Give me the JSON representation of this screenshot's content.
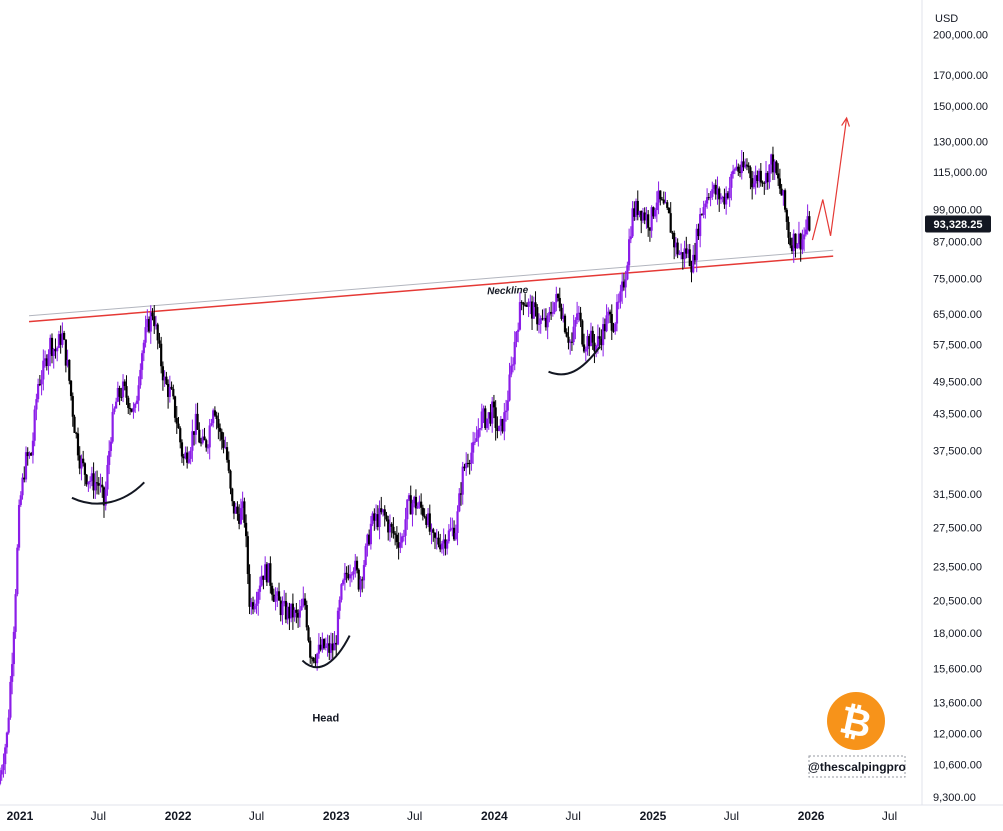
{
  "chart_data": {
    "type": "candlestick",
    "title": "",
    "currency_label": "USD",
    "last_price": 93328.25,
    "last_price_label": "93,328.25",
    "y_scale": "log",
    "ylim": [
      9000,
      230000
    ],
    "xlim": [
      "2020-11-16",
      "2026-09-14"
    ],
    "y_ticks": [
      {
        "value": 200000,
        "label": "200,000.00"
      },
      {
        "value": 170000,
        "label": "170,000.00"
      },
      {
        "value": 150000,
        "label": "150,000.00"
      },
      {
        "value": 130000,
        "label": "130,000.00"
      },
      {
        "value": 115000,
        "label": "115,000.00"
      },
      {
        "value": 99000,
        "label": "99,000.00"
      },
      {
        "value": 87000,
        "label": "87,000.00"
      },
      {
        "value": 75000,
        "label": "75,000.00"
      },
      {
        "value": 65000,
        "label": "65,000.00"
      },
      {
        "value": 57500,
        "label": "57,500.00"
      },
      {
        "value": 49500,
        "label": "49,500.00"
      },
      {
        "value": 43500,
        "label": "43,500.00"
      },
      {
        "value": 37500,
        "label": "37,500.00"
      },
      {
        "value": 31500,
        "label": "31,500.00"
      },
      {
        "value": 27500,
        "label": "27,500.00"
      },
      {
        "value": 23500,
        "label": "23,500.00"
      },
      {
        "value": 20500,
        "label": "20,500.00"
      },
      {
        "value": 18000,
        "label": "18,000.00"
      },
      {
        "value": 15600,
        "label": "15,600.00"
      },
      {
        "value": 13600,
        "label": "13,600.00"
      },
      {
        "value": 12000,
        "label": "12,000.00"
      },
      {
        "value": 10600,
        "label": "10,600.00"
      },
      {
        "value": 9300,
        "label": "9,300.00"
      }
    ],
    "x_ticks": [
      {
        "date": "2021-01-01",
        "label": "2021",
        "bold": true
      },
      {
        "date": "2021-07-01",
        "label": "Jul",
        "bold": false
      },
      {
        "date": "2022-01-01",
        "label": "2022",
        "bold": true
      },
      {
        "date": "2022-07-01",
        "label": "Jul",
        "bold": false
      },
      {
        "date": "2023-01-01",
        "label": "2023",
        "bold": true
      },
      {
        "date": "2023-07-01",
        "label": "Jul",
        "bold": false
      },
      {
        "date": "2024-01-01",
        "label": "2024",
        "bold": true
      },
      {
        "date": "2024-07-01",
        "label": "Jul",
        "bold": false
      },
      {
        "date": "2025-01-01",
        "label": "2025",
        "bold": true
      },
      {
        "date": "2025-07-01",
        "label": "Jul",
        "bold": false
      },
      {
        "date": "2026-01-01",
        "label": "2026",
        "bold": true
      },
      {
        "date": "2026-07-01",
        "label": "Jul",
        "bold": false
      }
    ],
    "price_path": [
      [
        "2020-11-16",
        9800
      ],
      [
        "2020-12-07",
        12000
      ],
      [
        "2020-12-21",
        18000
      ],
      [
        "2021-01-04",
        30000
      ],
      [
        "2021-01-18",
        36000
      ],
      [
        "2021-02-01",
        37000
      ],
      [
        "2021-02-15",
        49000
      ],
      [
        "2021-03-01",
        52000
      ],
      [
        "2021-03-15",
        58000
      ],
      [
        "2021-03-29",
        56000
      ],
      [
        "2021-04-12",
        60000
      ],
      [
        "2021-04-26",
        52000
      ],
      [
        "2021-05-10",
        42000
      ],
      [
        "2021-05-24",
        36000
      ],
      [
        "2021-06-07",
        34000
      ],
      [
        "2021-06-21",
        33000
      ],
      [
        "2021-07-05",
        33000
      ],
      [
        "2021-07-19",
        30000
      ],
      [
        "2021-08-02",
        40000
      ],
      [
        "2021-08-16",
        46000
      ],
      [
        "2021-08-30",
        48000
      ],
      [
        "2021-09-13",
        46000
      ],
      [
        "2021-09-27",
        43000
      ],
      [
        "2021-10-11",
        55000
      ],
      [
        "2021-10-25",
        61000
      ],
      [
        "2021-11-08",
        66000
      ],
      [
        "2021-11-22",
        56000
      ],
      [
        "2021-12-06",
        49000
      ],
      [
        "2021-12-20",
        47000
      ],
      [
        "2022-01-03",
        42000
      ],
      [
        "2022-01-17",
        36000
      ],
      [
        "2022-01-31",
        38000
      ],
      [
        "2022-02-14",
        42000
      ],
      [
        "2022-02-28",
        38000
      ],
      [
        "2022-03-14",
        39000
      ],
      [
        "2022-03-28",
        46000
      ],
      [
        "2022-04-11",
        40000
      ],
      [
        "2022-04-25",
        38000
      ],
      [
        "2022-05-09",
        30000
      ],
      [
        "2022-05-23",
        29000
      ],
      [
        "2022-06-06",
        29500
      ],
      [
        "2022-06-20",
        20000
      ],
      [
        "2022-07-04",
        21000
      ],
      [
        "2022-07-18",
        23000
      ],
      [
        "2022-08-01",
        23000
      ],
      [
        "2022-08-15",
        21000
      ],
      [
        "2022-08-29",
        20000
      ],
      [
        "2022-09-12",
        19500
      ],
      [
        "2022-09-26",
        19500
      ],
      [
        "2022-10-10",
        19000
      ],
      [
        "2022-10-24",
        20500
      ],
      [
        "2022-11-07",
        16500
      ],
      [
        "2022-11-21",
        16500
      ],
      [
        "2022-12-05",
        17000
      ],
      [
        "2022-12-19",
        16800
      ],
      [
        "2023-01-02",
        17000
      ],
      [
        "2023-01-16",
        21000
      ],
      [
        "2023-01-30",
        23000
      ],
      [
        "2023-02-13",
        24000
      ],
      [
        "2023-02-27",
        22000
      ],
      [
        "2023-03-13",
        24500
      ],
      [
        "2023-03-27",
        28000
      ],
      [
        "2023-04-10",
        28500
      ],
      [
        "2023-04-24",
        29000
      ],
      [
        "2023-05-08",
        27500
      ],
      [
        "2023-05-22",
        26500
      ],
      [
        "2023-06-05",
        26000
      ],
      [
        "2023-06-19",
        30000
      ],
      [
        "2023-07-03",
        30500
      ],
      [
        "2023-07-17",
        29800
      ],
      [
        "2023-07-31",
        29200
      ],
      [
        "2023-08-14",
        26000
      ],
      [
        "2023-08-28",
        26000
      ],
      [
        "2023-09-11",
        26200
      ],
      [
        "2023-09-25",
        27000
      ],
      [
        "2023-10-09",
        27500
      ],
      [
        "2023-10-23",
        34000
      ],
      [
        "2023-11-06",
        37000
      ],
      [
        "2023-11-20",
        37500
      ],
      [
        "2023-12-04",
        43000
      ],
      [
        "2023-12-18",
        42500
      ],
      [
        "2024-01-01",
        44000
      ],
      [
        "2024-01-15",
        40000
      ],
      [
        "2024-01-29",
        43000
      ],
      [
        "2024-02-12",
        51000
      ],
      [
        "2024-02-26",
        62000
      ],
      [
        "2024-03-11",
        70000
      ],
      [
        "2024-03-25",
        67000
      ],
      [
        "2024-04-08",
        65000
      ],
      [
        "2024-04-22",
        63000
      ],
      [
        "2024-05-06",
        62000
      ],
      [
        "2024-05-20",
        68000
      ],
      [
        "2024-06-03",
        69000
      ],
      [
        "2024-06-17",
        62000
      ],
      [
        "2024-07-01",
        57000
      ],
      [
        "2024-07-15",
        66000
      ],
      [
        "2024-07-29",
        58000
      ],
      [
        "2024-08-12",
        59000
      ],
      [
        "2024-08-26",
        57000
      ],
      [
        "2024-09-09",
        60000
      ],
      [
        "2024-09-23",
        64000
      ],
      [
        "2024-10-07",
        63000
      ],
      [
        "2024-10-21",
        68000
      ],
      [
        "2024-11-04",
        78000
      ],
      [
        "2024-11-18",
        97000
      ],
      [
        "2024-12-02",
        100000
      ],
      [
        "2024-12-16",
        97000
      ],
      [
        "2024-12-30",
        94000
      ],
      [
        "2025-01-13",
        104000
      ],
      [
        "2025-01-27",
        100000
      ],
      [
        "2025-02-10",
        96000
      ],
      [
        "2025-02-24",
        86000
      ],
      [
        "2025-03-10",
        82000
      ],
      [
        "2025-03-24",
        84000
      ],
      [
        "2025-04-07",
        79000
      ],
      [
        "2025-04-21",
        94000
      ],
      [
        "2025-05-05",
        103000
      ],
      [
        "2025-05-19",
        108000
      ],
      [
        "2025-06-02",
        105000
      ],
      [
        "2025-06-16",
        103000
      ],
      [
        "2025-06-30",
        108000
      ],
      [
        "2025-07-14",
        118000
      ],
      [
        "2025-07-28",
        115000
      ],
      [
        "2025-08-11",
        119000
      ],
      [
        "2025-08-25",
        110000
      ],
      [
        "2025-09-08",
        115000
      ],
      [
        "2025-09-22",
        112000
      ],
      [
        "2025-10-06",
        121000
      ],
      [
        "2025-10-20",
        111000
      ],
      [
        "2025-11-03",
        102000
      ],
      [
        "2025-11-17",
        87000
      ],
      [
        "2025-12-01",
        88000
      ],
      [
        "2025-12-15",
        87500
      ],
      [
        "2025-12-29",
        93328
      ]
    ],
    "trendlines": [
      {
        "name": "neckline-red",
        "color": "#e53935",
        "points": [
          [
            "2021-01-22",
            63000
          ],
          [
            "2026-02-21",
            82000
          ]
        ]
      },
      {
        "name": "neckline-grey",
        "color": "#b2b5be",
        "points": [
          [
            "2021-01-22",
            64500
          ],
          [
            "2026-02-21",
            84000
          ]
        ]
      }
    ],
    "projection": {
      "color": "#e53935",
      "points": [
        [
          "2026-01-04",
          87500
        ],
        [
          "2026-01-28",
          103000
        ],
        [
          "2026-02-15",
          89000
        ],
        [
          "2026-03-24",
          143000
        ]
      ]
    },
    "shoulder_arcs": [
      {
        "name": "left-shoulder-arc",
        "points": [
          [
            "2021-05-01",
            31000
          ],
          [
            "2021-07-01",
            29500
          ],
          [
            "2021-09-01",
            30500
          ],
          [
            "2021-10-15",
            33000
          ]
        ]
      },
      {
        "name": "head-arc",
        "points": [
          [
            "2022-10-15",
            16100
          ],
          [
            "2022-11-22",
            15100
          ],
          [
            "2023-01-01",
            16000
          ],
          [
            "2023-02-01",
            17800
          ]
        ]
      },
      {
        "name": "right-shoulder-arc",
        "points": [
          [
            "2024-05-05",
            51500
          ],
          [
            "2024-06-15",
            50000
          ],
          [
            "2024-07-20",
            51500
          ],
          [
            "2024-09-01",
            57000
          ]
        ]
      }
    ],
    "annotations": [
      {
        "text": "Neckline",
        "date": "2024-02-01",
        "price": 70500
      },
      {
        "text": "Head",
        "date": "2022-12-08",
        "price": 12600
      }
    ],
    "watermark_handle": "@thescalpingpro",
    "colors": {
      "up": "#8b1de8",
      "down": "#000000",
      "neckline": "#e53935",
      "grid": "#f0f3fa",
      "badge": "#f7931a"
    }
  }
}
